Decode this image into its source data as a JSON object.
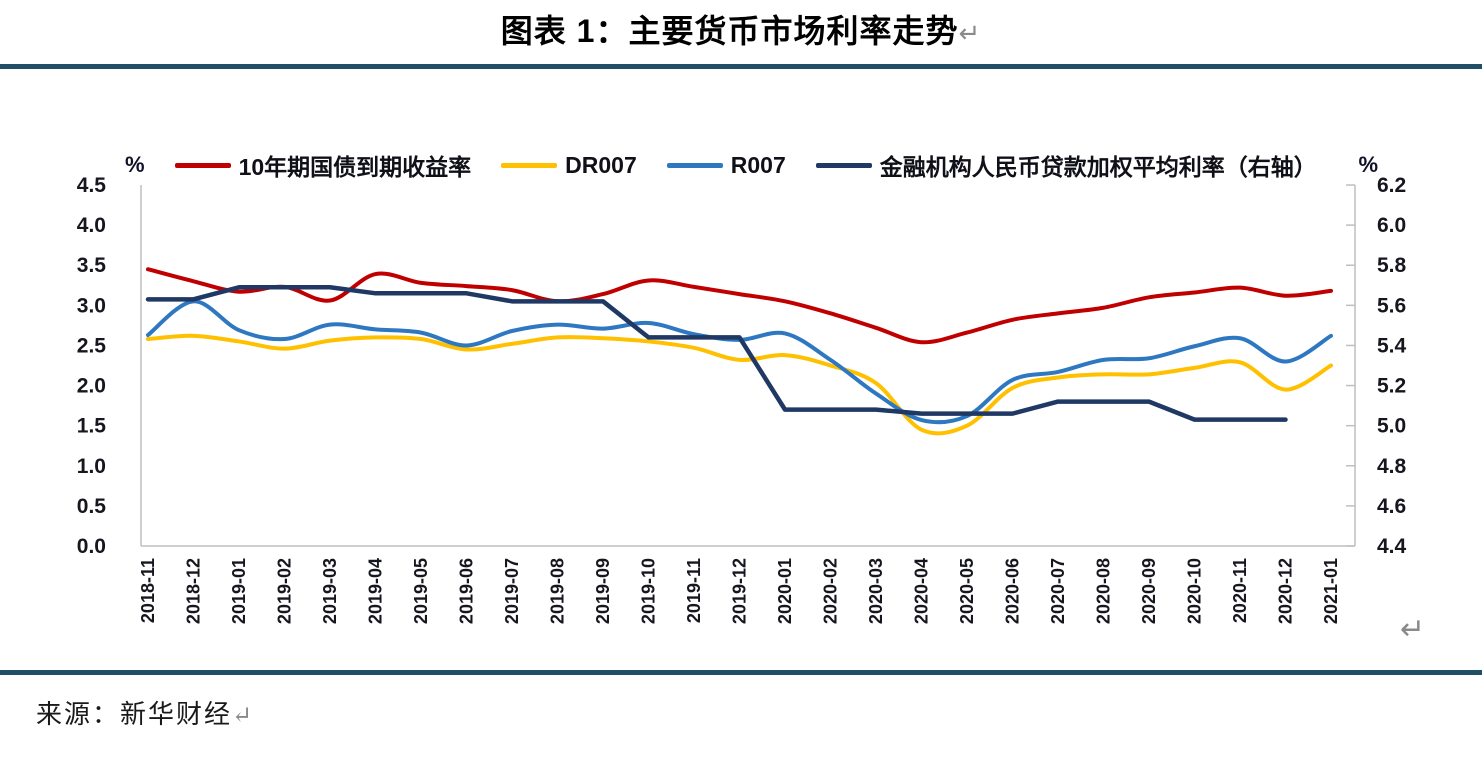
{
  "title": {
    "text": "图表 1：主要货币市场利率走势",
    "return_mark": "↵"
  },
  "legend": {
    "left_axis_unit": "%",
    "right_axis_unit": "%",
    "items": [
      {
        "label": "10年期国债到期收益率"
      },
      {
        "label": "DR007"
      },
      {
        "label": "R007"
      },
      {
        "label": "金融机构人民币贷款加权平均利率（右轴）"
      }
    ]
  },
  "chart_return_mark": "↵",
  "source": {
    "text": "来源：新华财经",
    "return_mark": "↵"
  },
  "chart_data": {
    "type": "line",
    "title": "主要货币市场利率走势",
    "grid": false,
    "legend_position": "top",
    "categories": [
      "2018-11",
      "2018-12",
      "2019-01",
      "2019-02",
      "2019-03",
      "2019-04",
      "2019-05",
      "2019-06",
      "2019-07",
      "2019-08",
      "2019-09",
      "2019-10",
      "2019-11",
      "2019-12",
      "2020-01",
      "2020-02",
      "2020-03",
      "2020-04",
      "2020-05",
      "2020-06",
      "2020-07",
      "2020-08",
      "2020-09",
      "2020-10",
      "2020-11",
      "2020-12",
      "2021-01"
    ],
    "left_axis": {
      "unit": "%",
      "min": 0.0,
      "max": 4.5,
      "step": 0.5,
      "tick_labels": [
        "4.5",
        "4.0",
        "3.5",
        "3.0",
        "2.5",
        "2.0",
        "1.5",
        "1.0",
        "0.5",
        "0.0"
      ]
    },
    "right_axis": {
      "unit": "%",
      "min": 4.4,
      "max": 6.2,
      "step": 0.2,
      "tick_labels": [
        "6.2",
        "6.0",
        "5.8",
        "5.6",
        "5.4",
        "5.2",
        "5.0",
        "4.8",
        "4.6",
        "4.4"
      ]
    },
    "series": [
      {
        "name": "10年期国债到期收益率",
        "axis": "left",
        "color": "#c00000",
        "smooth": true,
        "width": 4,
        "values": [
          3.45,
          3.3,
          3.17,
          3.23,
          3.06,
          3.39,
          3.28,
          3.24,
          3.19,
          3.05,
          3.14,
          3.31,
          3.23,
          3.14,
          3.05,
          2.9,
          2.72,
          2.54,
          2.66,
          2.82,
          2.9,
          2.97,
          3.1,
          3.16,
          3.22,
          3.12,
          3.18
        ]
      },
      {
        "name": "DR007",
        "axis": "left",
        "color": "#ffc000",
        "smooth": true,
        "width": 4,
        "values": [
          2.58,
          2.62,
          2.55,
          2.46,
          2.56,
          2.6,
          2.58,
          2.45,
          2.52,
          2.6,
          2.59,
          2.55,
          2.47,
          2.32,
          2.38,
          2.25,
          2.03,
          1.45,
          1.5,
          1.97,
          2.1,
          2.14,
          2.14,
          2.22,
          2.29,
          1.95,
          2.25
        ]
      },
      {
        "name": "R007",
        "axis": "left",
        "color": "#2e78c2",
        "smooth": true,
        "width": 4,
        "values": [
          2.63,
          3.05,
          2.69,
          2.58,
          2.76,
          2.7,
          2.66,
          2.5,
          2.68,
          2.76,
          2.71,
          2.78,
          2.64,
          2.57,
          2.65,
          2.32,
          1.9,
          1.57,
          1.62,
          2.07,
          2.17,
          2.32,
          2.34,
          2.49,
          2.59,
          2.3,
          2.62
        ]
      },
      {
        "name": "金融机构人民币贷款加权平均利率（右轴）",
        "axis": "right",
        "color": "#1f3864",
        "smooth": false,
        "width": 4.5,
        "values": [
          5.63,
          5.63,
          5.69,
          5.69,
          5.69,
          5.66,
          5.66,
          5.66,
          5.62,
          5.62,
          5.62,
          5.44,
          5.44,
          5.44,
          5.08,
          5.08,
          5.08,
          5.06,
          5.06,
          5.06,
          5.12,
          5.12,
          5.12,
          5.03,
          5.03,
          5.03,
          null
        ]
      }
    ]
  }
}
